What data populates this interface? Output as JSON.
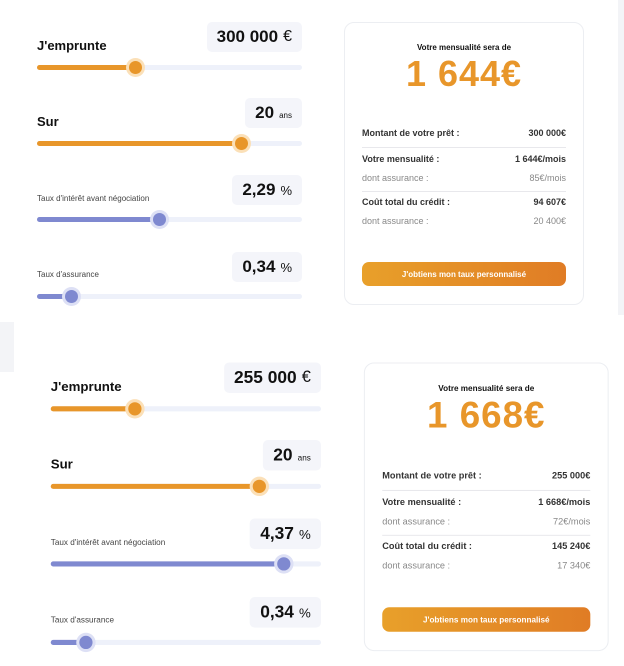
{
  "simulations": [
    {
      "loan": {
        "label": "J'emprunte",
        "value": "300 000",
        "unit": "€",
        "slider_fraction": 0.37
      },
      "duration": {
        "label": "Sur",
        "value": "20",
        "unit": "ans",
        "slider_fraction": 0.77
      },
      "rate": {
        "label": "Taux d'intérêt avant négociation",
        "value": "2,29",
        "unit": "%",
        "slider_fraction": 0.46
      },
      "insurance": {
        "label": "Taux d'assurance",
        "value": "0,34",
        "unit": "%",
        "slider_fraction": 0.13
      },
      "result": {
        "title": "Votre mensualité sera de",
        "monthly_big": "1 644€",
        "loan_amount_label": "Montant de votre prêt :",
        "loan_amount": "300 000€",
        "monthly_label": "Votre mensualité :",
        "monthly": "1 644€/mois",
        "monthly_ins_label": "dont assurance :",
        "monthly_ins": "85€/mois",
        "total_label": "Coût total du crédit :",
        "total": "94 607€",
        "total_ins_label": "dont assurance :",
        "total_ins": "20 400€",
        "cta": "J'obtiens mon taux personnalisé"
      }
    },
    {
      "loan": {
        "label": "J'emprunte",
        "value": "255 000",
        "unit": "€",
        "slider_fraction": 0.31
      },
      "duration": {
        "label": "Sur",
        "value": "20",
        "unit": "ans",
        "slider_fraction": 0.77
      },
      "rate": {
        "label": "Taux d'intérêt avant négociation",
        "value": "4,37",
        "unit": "%",
        "slider_fraction": 0.86
      },
      "insurance": {
        "label": "Taux d'assurance",
        "value": "0,34",
        "unit": "%",
        "slider_fraction": 0.13
      },
      "result": {
        "title": "Votre mensualité sera de",
        "monthly_big": "1 668€",
        "loan_amount_label": "Montant de votre prêt :",
        "loan_amount": "255 000€",
        "monthly_label": "Votre mensualité :",
        "monthly": "1 668€/mois",
        "monthly_ins_label": "dont assurance :",
        "monthly_ins": "72€/mois",
        "total_label": "Coût total du crédit :",
        "total": "145 240€",
        "total_ins_label": "dont assurance :",
        "total_ins": "17 340€",
        "cta": "J'obtiens mon taux personnalisé"
      }
    }
  ],
  "colors": {
    "accent": "#e8962a",
    "rate_slider": "#7f89d0",
    "track": "#eef1fa"
  }
}
